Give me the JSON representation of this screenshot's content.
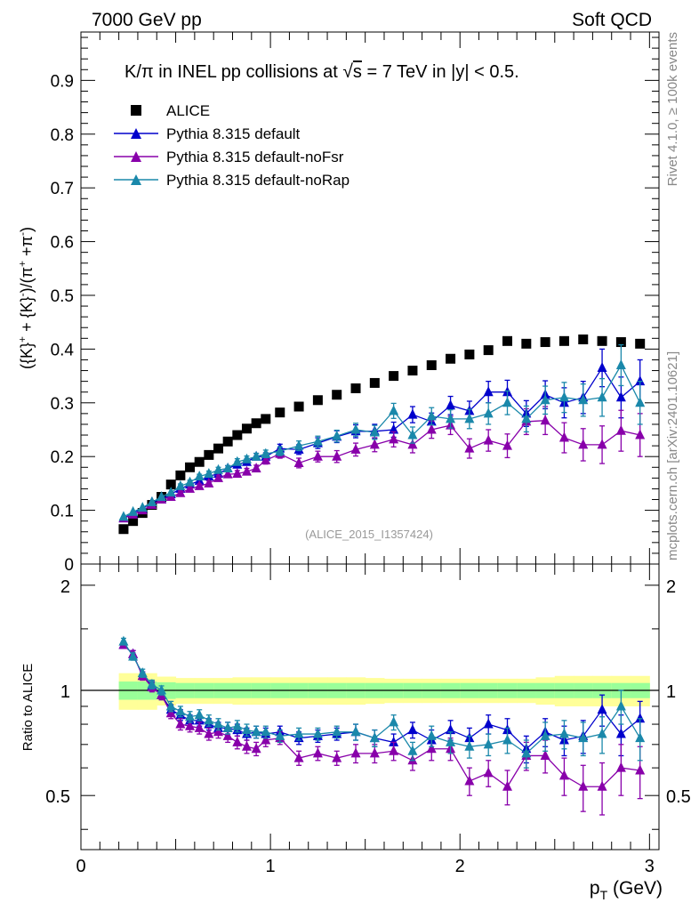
{
  "header": {
    "left": "7000 GeV pp",
    "right": "Soft QCD"
  },
  "side_labels": {
    "rivet": "Rivet 4.1.0, ≥ 100k events",
    "mcplots": "mcplots.cern.ch [arXiv:2401.10621]"
  },
  "chart_data": [
    {
      "type": "scatter",
      "panel": "main",
      "title": "K/π in INEL pp collisions at √s = 7 TeV in |y| < 0.5.",
      "title_parts": {
        "pre": "K/π in INEL pp collisions at ",
        "root": "√",
        "s": "s",
        "post": " =  7 TeV in |y| < 0.5."
      },
      "ylabel": "({K}⁺ + {K}⁻)/(π⁺ + π⁻)",
      "ylabel_parts": {
        "a": "({K}",
        "sup1": "+",
        "b": " + {K}",
        "sup2": "-",
        "c": ")/(π",
        "sup3": "+",
        "d": " +π",
        "sup4": "-",
        "e": ")"
      },
      "xlabel": "pT (GeV)",
      "xlim": [
        0,
        3.05
      ],
      "ylim": [
        0,
        0.99
      ],
      "yticks": [
        0,
        0.1,
        0.2,
        0.3,
        0.4,
        0.5,
        0.6,
        0.7,
        0.8,
        0.9
      ],
      "ytick_labels": [
        "0",
        "0.1",
        "0.2",
        "0.3",
        "0.4",
        "0.5",
        "0.6",
        "0.7",
        "0.8",
        "0.9"
      ],
      "watermark": "(ALICE_2015_I1357424)",
      "x": [
        0.225,
        0.275,
        0.325,
        0.375,
        0.425,
        0.475,
        0.525,
        0.575,
        0.625,
        0.675,
        0.725,
        0.775,
        0.825,
        0.875,
        0.925,
        0.975,
        1.05,
        1.15,
        1.25,
        1.35,
        1.45,
        1.55,
        1.65,
        1.75,
        1.85,
        1.95,
        2.05,
        2.15,
        2.25,
        2.35,
        2.45,
        2.55,
        2.65,
        2.75,
        2.85,
        2.95
      ],
      "series": [
        {
          "name": "ALICE",
          "color": "#000000",
          "marker": "square",
          "values": [
            0.065,
            0.08,
            0.095,
            0.11,
            0.125,
            0.148,
            0.165,
            0.18,
            0.19,
            0.203,
            0.215,
            0.228,
            0.24,
            0.252,
            0.262,
            0.27,
            0.282,
            0.293,
            0.305,
            0.315,
            0.327,
            0.337,
            0.35,
            0.36,
            0.37,
            0.382,
            0.39,
            0.398,
            0.415,
            0.41,
            0.413,
            0.415,
            0.418,
            0.415,
            0.413,
            0.41
          ],
          "errors": [
            0.003,
            0.003,
            0.003,
            0.003,
            0.003,
            0.003,
            0.003,
            0.003,
            0.003,
            0.003,
            0.003,
            0.003,
            0.003,
            0.003,
            0.003,
            0.003,
            0.003,
            0.003,
            0.003,
            0.003,
            0.003,
            0.003,
            0.003,
            0.003,
            0.003,
            0.003,
            0.003,
            0.003,
            0.003,
            0.003,
            0.003,
            0.003,
            0.003,
            0.003,
            0.003,
            0.003
          ]
        },
        {
          "name": "Pythia 8.315 default",
          "color": "#0000cc",
          "marker": "triangle",
          "values": [
            0.085,
            0.095,
            0.103,
            0.115,
            0.121,
            0.13,
            0.14,
            0.148,
            0.155,
            0.163,
            0.168,
            0.178,
            0.185,
            0.19,
            0.2,
            0.2,
            0.215,
            0.213,
            0.225,
            0.237,
            0.247,
            0.247,
            0.25,
            0.278,
            0.265,
            0.295,
            0.285,
            0.32,
            0.32,
            0.28,
            0.315,
            0.3,
            0.31,
            0.365,
            0.31,
            0.34
          ],
          "errors": [
            0.003,
            0.003,
            0.003,
            0.003,
            0.003,
            0.003,
            0.004,
            0.004,
            0.004,
            0.005,
            0.005,
            0.005,
            0.006,
            0.006,
            0.006,
            0.007,
            0.008,
            0.009,
            0.01,
            0.011,
            0.012,
            0.013,
            0.014,
            0.015,
            0.016,
            0.017,
            0.018,
            0.02,
            0.022,
            0.024,
            0.026,
            0.028,
            0.03,
            0.035,
            0.038,
            0.04
          ]
        },
        {
          "name": "Pythia 8.315 default-noFsr",
          "color": "#8800aa",
          "marker": "triangle",
          "values": [
            0.085,
            0.092,
            0.1,
            0.11,
            0.12,
            0.125,
            0.132,
            0.14,
            0.145,
            0.15,
            0.16,
            0.167,
            0.168,
            0.172,
            0.178,
            0.193,
            0.205,
            0.188,
            0.2,
            0.2,
            0.213,
            0.222,
            0.232,
            0.222,
            0.25,
            0.258,
            0.215,
            0.23,
            0.22,
            0.265,
            0.267,
            0.235,
            0.222,
            0.222,
            0.248,
            0.24
          ],
          "errors": [
            0.003,
            0.003,
            0.003,
            0.003,
            0.003,
            0.003,
            0.004,
            0.004,
            0.004,
            0.005,
            0.005,
            0.005,
            0.006,
            0.006,
            0.006,
            0.007,
            0.008,
            0.009,
            0.01,
            0.011,
            0.012,
            0.013,
            0.014,
            0.015,
            0.016,
            0.017,
            0.018,
            0.02,
            0.022,
            0.024,
            0.026,
            0.028,
            0.03,
            0.035,
            0.038,
            0.04
          ]
        },
        {
          "name": "Pythia 8.315 default-noRap",
          "color": "#1a88aa",
          "marker": "triangle",
          "values": [
            0.088,
            0.097,
            0.105,
            0.115,
            0.125,
            0.133,
            0.145,
            0.152,
            0.163,
            0.168,
            0.175,
            0.178,
            0.19,
            0.195,
            0.2,
            0.205,
            0.21,
            0.22,
            0.228,
            0.238,
            0.25,
            0.245,
            0.285,
            0.24,
            0.275,
            0.27,
            0.27,
            0.28,
            0.3,
            0.27,
            0.305,
            0.31,
            0.305,
            0.31,
            0.37,
            0.3
          ],
          "errors": [
            0.003,
            0.003,
            0.003,
            0.003,
            0.003,
            0.003,
            0.004,
            0.004,
            0.004,
            0.005,
            0.005,
            0.005,
            0.006,
            0.006,
            0.006,
            0.007,
            0.008,
            0.009,
            0.01,
            0.011,
            0.012,
            0.013,
            0.014,
            0.015,
            0.016,
            0.017,
            0.018,
            0.02,
            0.022,
            0.024,
            0.026,
            0.028,
            0.03,
            0.035,
            0.038,
            0.04
          ]
        }
      ]
    },
    {
      "type": "scatter",
      "panel": "ratio",
      "ylabel": "Ratio to ALICE",
      "xlabel": "pT (GeV)",
      "xlim": [
        0,
        3.05
      ],
      "ylim": [
        0.35,
        2.3
      ],
      "yticks": [
        0.5,
        1,
        2
      ],
      "ytick_labels": [
        "0.5",
        "1",
        "2"
      ],
      "xticks": [
        0,
        1,
        2,
        3
      ],
      "xtick_labels": [
        "0",
        "1",
        "2",
        "3"
      ],
      "reference_line": 1,
      "bands": {
        "x_edges": [
          0.2,
          0.3,
          0.4,
          0.5,
          0.6,
          0.7,
          0.8,
          0.9,
          1.0,
          1.1,
          1.2,
          1.3,
          1.4,
          1.5,
          1.6,
          1.7,
          1.8,
          1.9,
          2.0,
          2.1,
          2.2,
          2.3,
          2.4,
          2.5,
          2.6,
          2.7,
          2.8,
          2.9,
          3.0
        ],
        "green_halfwidth": [
          0.06,
          0.06,
          0.055,
          0.05,
          0.05,
          0.05,
          0.05,
          0.05,
          0.05,
          0.05,
          0.05,
          0.05,
          0.05,
          0.05,
          0.05,
          0.05,
          0.05,
          0.05,
          0.05,
          0.05,
          0.05,
          0.05,
          0.05,
          0.05,
          0.05,
          0.05,
          0.05,
          0.05
        ],
        "yellow_halfwidth": [
          0.12,
          0.12,
          0.095,
          0.085,
          0.085,
          0.085,
          0.09,
          0.09,
          0.09,
          0.09,
          0.09,
          0.09,
          0.09,
          0.085,
          0.08,
          0.08,
          0.08,
          0.08,
          0.08,
          0.08,
          0.08,
          0.08,
          0.09,
          0.1,
          0.1,
          0.1,
          0.1,
          0.1
        ],
        "green_color": "#99ff99",
        "yellow_color": "#ffff99"
      },
      "x": [
        0.225,
        0.275,
        0.325,
        0.375,
        0.425,
        0.475,
        0.525,
        0.575,
        0.625,
        0.675,
        0.725,
        0.775,
        0.825,
        0.875,
        0.925,
        0.975,
        1.05,
        1.15,
        1.25,
        1.35,
        1.45,
        1.55,
        1.65,
        1.75,
        1.85,
        1.95,
        2.05,
        2.15,
        2.25,
        2.35,
        2.45,
        2.55,
        2.65,
        2.75,
        2.85,
        2.95
      ],
      "series": [
        {
          "name": "Pythia 8.315 default",
          "color": "#0000cc",
          "marker": "triangle",
          "values": [
            1.35,
            1.27,
            1.1,
            1.03,
            0.97,
            0.88,
            0.85,
            0.82,
            0.82,
            0.8,
            0.78,
            0.78,
            0.77,
            0.75,
            0.76,
            0.75,
            0.76,
            0.73,
            0.74,
            0.75,
            0.76,
            0.73,
            0.71,
            0.77,
            0.72,
            0.77,
            0.73,
            0.8,
            0.77,
            0.68,
            0.76,
            0.72,
            0.74,
            0.88,
            0.75,
            0.83
          ],
          "errors": [
            0.03,
            0.03,
            0.03,
            0.03,
            0.03,
            0.03,
            0.03,
            0.03,
            0.03,
            0.03,
            0.03,
            0.03,
            0.03,
            0.03,
            0.03,
            0.03,
            0.03,
            0.03,
            0.03,
            0.03,
            0.04,
            0.04,
            0.04,
            0.04,
            0.05,
            0.05,
            0.05,
            0.05,
            0.06,
            0.06,
            0.07,
            0.07,
            0.08,
            0.09,
            0.1,
            0.1
          ]
        },
        {
          "name": "Pythia 8.315 default-noFsr",
          "color": "#8800aa",
          "marker": "triangle",
          "values": [
            1.35,
            1.27,
            1.1,
            1.02,
            0.97,
            0.86,
            0.8,
            0.79,
            0.78,
            0.75,
            0.76,
            0.74,
            0.71,
            0.69,
            0.68,
            0.72,
            0.73,
            0.64,
            0.66,
            0.64,
            0.66,
            0.66,
            0.67,
            0.63,
            0.68,
            0.68,
            0.55,
            0.58,
            0.53,
            0.65,
            0.65,
            0.57,
            0.53,
            0.53,
            0.6,
            0.59
          ],
          "errors": [
            0.03,
            0.03,
            0.03,
            0.03,
            0.03,
            0.03,
            0.03,
            0.03,
            0.03,
            0.03,
            0.03,
            0.03,
            0.03,
            0.03,
            0.03,
            0.03,
            0.03,
            0.03,
            0.03,
            0.03,
            0.04,
            0.04,
            0.04,
            0.04,
            0.05,
            0.05,
            0.05,
            0.05,
            0.06,
            0.06,
            0.07,
            0.07,
            0.08,
            0.09,
            0.1,
            0.1
          ]
        },
        {
          "name": "Pythia 8.315 default-noRap",
          "color": "#1a88aa",
          "marker": "triangle",
          "values": [
            1.38,
            1.25,
            1.12,
            1.04,
            1.0,
            0.9,
            0.87,
            0.84,
            0.85,
            0.82,
            0.8,
            0.78,
            0.79,
            0.77,
            0.76,
            0.76,
            0.74,
            0.75,
            0.75,
            0.76,
            0.76,
            0.73,
            0.81,
            0.67,
            0.74,
            0.71,
            0.69,
            0.7,
            0.72,
            0.66,
            0.74,
            0.75,
            0.73,
            0.75,
            0.9,
            0.73
          ],
          "errors": [
            0.03,
            0.03,
            0.03,
            0.03,
            0.03,
            0.03,
            0.03,
            0.03,
            0.03,
            0.03,
            0.03,
            0.03,
            0.03,
            0.03,
            0.03,
            0.03,
            0.03,
            0.03,
            0.03,
            0.03,
            0.04,
            0.04,
            0.04,
            0.04,
            0.05,
            0.05,
            0.05,
            0.05,
            0.06,
            0.06,
            0.07,
            0.07,
            0.08,
            0.09,
            0.1,
            0.1
          ]
        }
      ]
    }
  ]
}
